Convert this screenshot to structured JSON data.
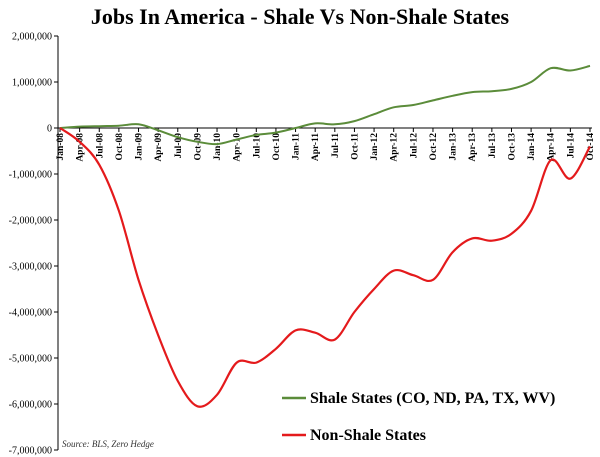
{
  "chart_data": {
    "type": "line",
    "title": "Jobs In America - Shale Vs Non-Shale States",
    "source": "Source: BLS, Zero Hedge",
    "ylim": [
      -7000000,
      2000000
    ],
    "yticks": [
      2000000,
      1000000,
      0,
      -1000000,
      -2000000,
      -3000000,
      -4000000,
      -5000000,
      -6000000,
      -7000000
    ],
    "ytick_labels": [
      "2,000,000",
      "1,000,000",
      "0",
      "-1,000,000",
      "-2,000,000",
      "-3,000,000",
      "-4,000,000",
      "-5,000,000",
      "-6,000,000",
      "-7,000,000"
    ],
    "x_tick_labels": [
      "Jan-08",
      "Apr-08",
      "Jul-08",
      "Oct-08",
      "Jan-09",
      "Apr-09",
      "Jul-09",
      "Oct-09",
      "Jan-10",
      "Apr-10",
      "Jul-10",
      "Oct-10",
      "Jan-11",
      "Apr-11",
      "Jul-11",
      "Oct-11",
      "Jan-12",
      "Apr-12",
      "Jul-12",
      "Oct-12",
      "Jan-13",
      "Apr-13",
      "Jul-13",
      "Oct-13",
      "Jan-14",
      "Apr-14",
      "Jul-14",
      "Oct-14"
    ],
    "grid": false,
    "legend_position": "bottom-right",
    "series": [
      {
        "name": "Shale States (CO, ND, PA, TX, WV)",
        "color": "#5b8c3a",
        "values": [
          0,
          30000,
          40000,
          50000,
          80000,
          -50000,
          -200000,
          -300000,
          -350000,
          -250000,
          -150000,
          -100000,
          0,
          100000,
          80000,
          150000,
          300000,
          450000,
          500000,
          600000,
          700000,
          780000,
          800000,
          850000,
          1000000,
          1300000,
          1250000,
          1350000
        ]
      },
      {
        "name": "Non-Shale States",
        "color": "#e41a1c",
        "values": [
          0,
          -300000,
          -800000,
          -1800000,
          -3300000,
          -4500000,
          -5500000,
          -6050000,
          -5800000,
          -5100000,
          -5100000,
          -4800000,
          -4400000,
          -4450000,
          -4600000,
          -4000000,
          -3500000,
          -3100000,
          -3200000,
          -3300000,
          -2700000,
          -2400000,
          -2450000,
          -2300000,
          -1800000,
          -700000,
          -1100000,
          -400000
        ]
      }
    ]
  }
}
